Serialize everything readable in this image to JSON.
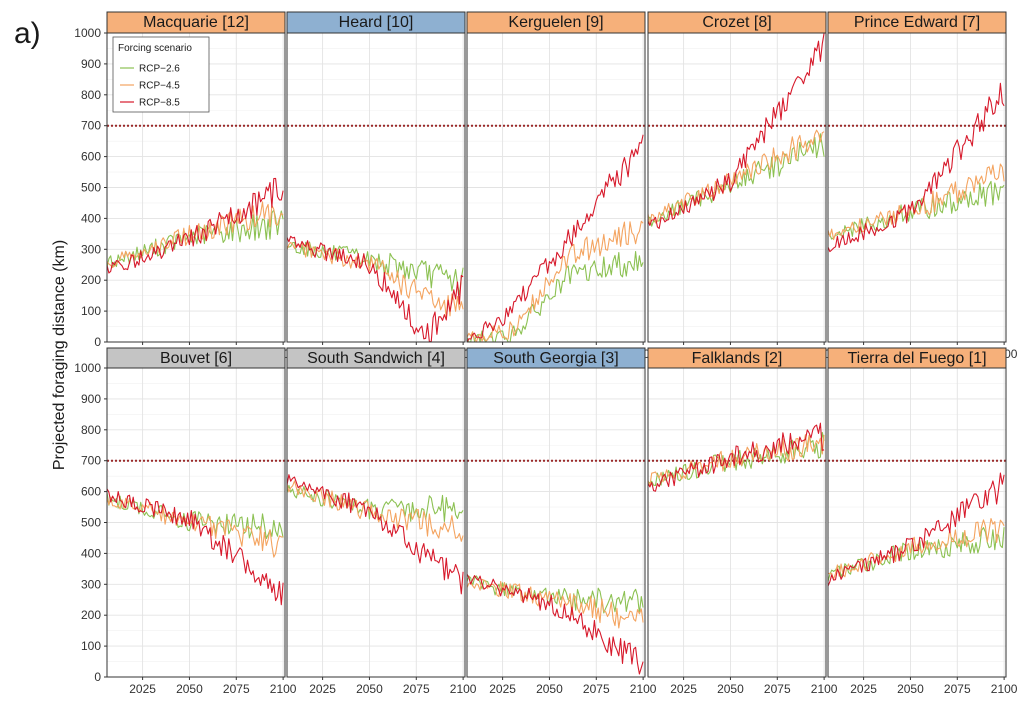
{
  "figure": {
    "panel_label": "a)",
    "ylabel": "Projected foraging distance (km)",
    "threshold_color": "#9b2a2a"
  },
  "legend": {
    "title": "Forcing scenario",
    "position": "top-left of first panel"
  },
  "colors": {
    "orange_strip": "#f6b07a",
    "blue_strip": "#8eb0d1",
    "grey_strip": "#c4c4c4",
    "RCP-2.6": "#8cc152",
    "RCP-4.5": "#f4a460",
    "RCP-8.5": "#d7192b"
  },
  "chart_data": {
    "type": "line",
    "facet_layout": "2 rows x 5 columns, shared axes",
    "x_ticks": [
      2025,
      2050,
      2075,
      2100
    ],
    "xlim": [
      2006,
      2101
    ],
    "y_ticks": [
      0,
      100,
      200,
      300,
      400,
      500,
      600,
      700,
      800,
      900,
      1000
    ],
    "ylim": [
      0,
      1000
    ],
    "threshold": 700,
    "grid": true,
    "series_names": [
      "RCP−2.6",
      "RCP−4.5",
      "RCP−8.5"
    ],
    "series_keys": [
      "RCP-2.6",
      "RCP-4.5",
      "RCP-8.5"
    ],
    "panels": [
      {
        "title": "Macquarie [12]",
        "strip": "orange",
        "trends": {
          "RCP-2.6": [
            [
              2006,
              255
            ],
            [
              2050,
              340
            ],
            [
              2100,
              385
            ]
          ],
          "RCP-4.5": [
            [
              2006,
              255
            ],
            [
              2050,
              345
            ],
            [
              2100,
              430
            ]
          ],
          "RCP-8.5": [
            [
              2006,
              230
            ],
            [
              2050,
              335
            ],
            [
              2100,
              500
            ]
          ]
        }
      },
      {
        "title": "Heard [10]",
        "strip": "blue",
        "trends": {
          "RCP-2.6": [
            [
              2006,
              315
            ],
            [
              2050,
              265
            ],
            [
              2100,
              195
            ]
          ],
          "RCP-4.5": [
            [
              2006,
              310
            ],
            [
              2050,
              255
            ],
            [
              2085,
              120
            ],
            [
              2100,
              120
            ]
          ],
          "RCP-8.5": [
            [
              2006,
              325
            ],
            [
              2050,
              250
            ],
            [
              2080,
              20
            ],
            [
              2100,
              180
            ]
          ]
        }
      },
      {
        "title": "Kerguelen [9]",
        "strip": "orange",
        "trends": {
          "RCP-2.6": [
            [
              2006,
              10
            ],
            [
              2030,
              20
            ],
            [
              2060,
              210
            ],
            [
              2100,
              270
            ]
          ],
          "RCP-4.5": [
            [
              2006,
              10
            ],
            [
              2030,
              40
            ],
            [
              2060,
              280
            ],
            [
              2100,
              370
            ]
          ],
          "RCP-8.5": [
            [
              2006,
              10
            ],
            [
              2025,
              70
            ],
            [
              2060,
              330
            ],
            [
              2100,
              640
            ]
          ]
        }
      },
      {
        "title": "Crozet [8]",
        "strip": "orange",
        "trends": {
          "RCP-2.6": [
            [
              2006,
              390
            ],
            [
              2050,
              510
            ],
            [
              2100,
              640
            ]
          ],
          "RCP-4.5": [
            [
              2006,
              395
            ],
            [
              2050,
              520
            ],
            [
              2100,
              680
            ]
          ],
          "RCP-8.5": [
            [
              2006,
              370
            ],
            [
              2050,
              520
            ],
            [
              2100,
              960
            ]
          ]
        }
      },
      {
        "title": "Prince Edward [7]",
        "strip": "orange",
        "trends": {
          "RCP-2.6": [
            [
              2006,
              340
            ],
            [
              2050,
              420
            ],
            [
              2100,
              490
            ]
          ],
          "RCP-4.5": [
            [
              2006,
              345
            ],
            [
              2050,
              420
            ],
            [
              2100,
              560
            ]
          ],
          "RCP-8.5": [
            [
              2006,
              310
            ],
            [
              2050,
              420
            ],
            [
              2100,
              810
            ]
          ]
        }
      },
      {
        "title": "Bouvet [6]",
        "strip": "grey",
        "trends": {
          "RCP-2.6": [
            [
              2006,
              575
            ],
            [
              2050,
              505
            ],
            [
              2100,
              480
            ]
          ],
          "RCP-4.5": [
            [
              2006,
              580
            ],
            [
              2050,
              500
            ],
            [
              2100,
              425
            ]
          ],
          "RCP-8.5": [
            [
              2006,
              590
            ],
            [
              2050,
              510
            ],
            [
              2100,
              265
            ]
          ]
        }
      },
      {
        "title": "South Sandwich [4]",
        "strip": "grey",
        "trends": {
          "RCP-2.6": [
            [
              2006,
              610
            ],
            [
              2050,
              540
            ],
            [
              2100,
              550
            ]
          ],
          "RCP-4.5": [
            [
              2006,
              620
            ],
            [
              2050,
              535
            ],
            [
              2100,
              470
            ]
          ],
          "RCP-8.5": [
            [
              2006,
              640
            ],
            [
              2050,
              540
            ],
            [
              2100,
              300
            ]
          ]
        }
      },
      {
        "title": "South Georgia [3]",
        "strip": "blue",
        "trends": {
          "RCP-2.6": [
            [
              2006,
              310
            ],
            [
              2050,
              255
            ],
            [
              2100,
              240
            ]
          ],
          "RCP-4.5": [
            [
              2006,
              310
            ],
            [
              2050,
              250
            ],
            [
              2100,
              185
            ]
          ],
          "RCP-8.5": [
            [
              2006,
              320
            ],
            [
              2050,
              240
            ],
            [
              2100,
              40
            ]
          ]
        }
      },
      {
        "title": "Falklands [2]",
        "strip": "orange",
        "trends": {
          "RCP-2.6": [
            [
              2006,
              630
            ],
            [
              2050,
              700
            ],
            [
              2100,
              745
            ]
          ],
          "RCP-4.5": [
            [
              2006,
              635
            ],
            [
              2050,
              705
            ],
            [
              2100,
              760
            ]
          ],
          "RCP-8.5": [
            [
              2006,
              615
            ],
            [
              2050,
              710
            ],
            [
              2100,
              780
            ]
          ]
        }
      },
      {
        "title": "Tierra del Fuego [1]",
        "strip": "orange",
        "trends": {
          "RCP-2.6": [
            [
              2006,
              330
            ],
            [
              2050,
              410
            ],
            [
              2100,
              450
            ]
          ],
          "RCP-4.5": [
            [
              2006,
              330
            ],
            [
              2050,
              420
            ],
            [
              2100,
              480
            ]
          ],
          "RCP-8.5": [
            [
              2006,
              315
            ],
            [
              2050,
              420
            ],
            [
              2100,
              620
            ]
          ]
        }
      }
    ]
  }
}
